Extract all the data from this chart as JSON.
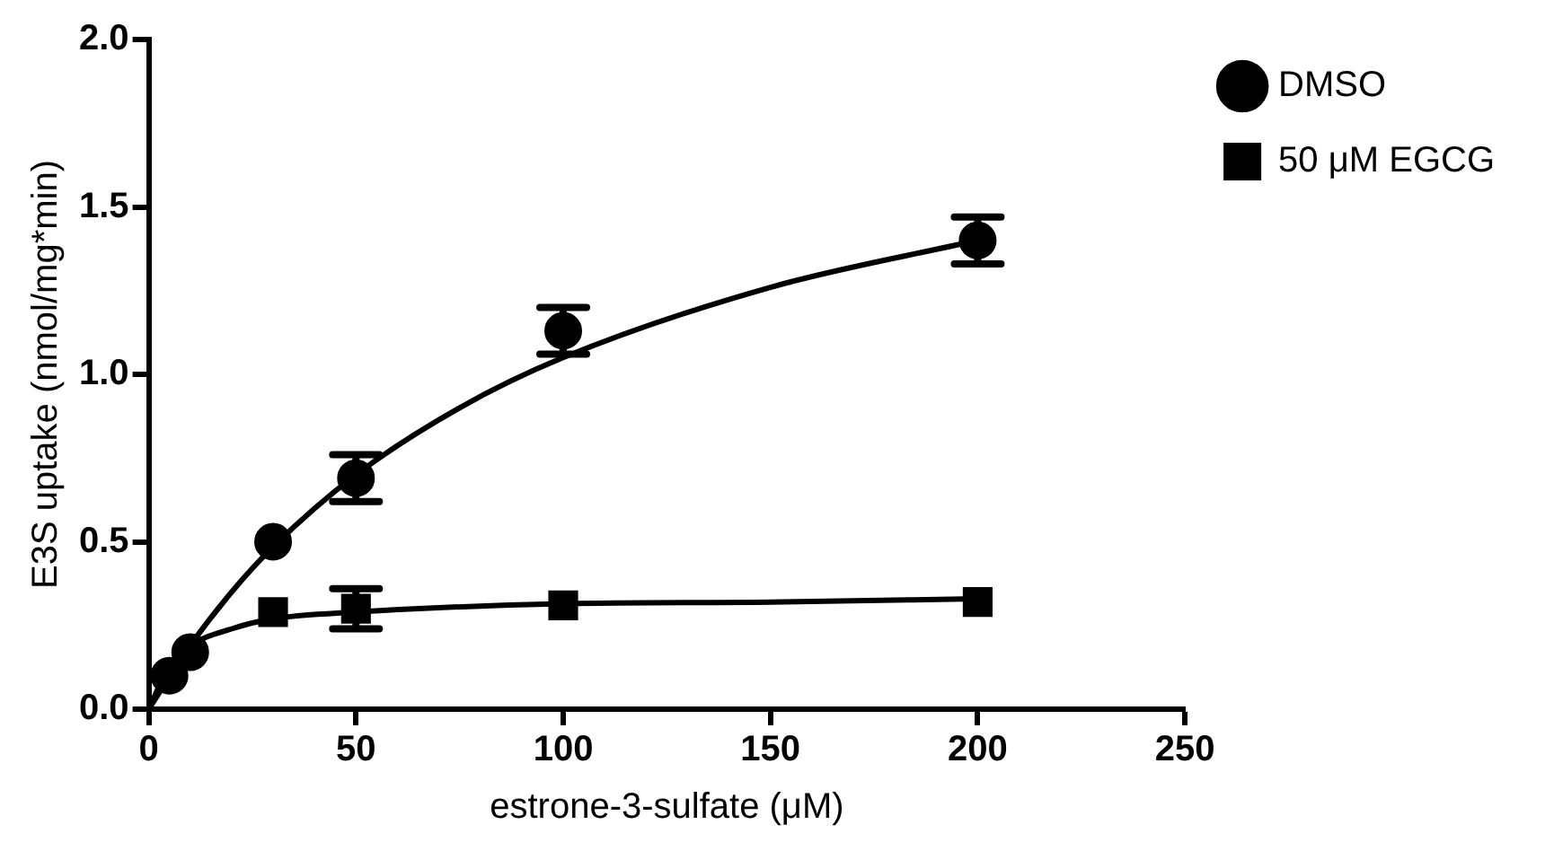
{
  "chart_data": {
    "type": "scatter",
    "xlabel": "estrone-3-sulfate (μM)",
    "ylabel": "E3S uptake (nmol/mg*min)",
    "xlim": [
      0,
      250
    ],
    "xticks": [
      0,
      50,
      100,
      150,
      200,
      250
    ],
    "ylim": [
      0,
      2.0
    ],
    "yticks": [
      {
        "value": 0,
        "label": "0.0"
      },
      {
        "value": 0.5,
        "label": "0.5"
      },
      {
        "value": 1.0,
        "label": "1.0"
      },
      {
        "value": 1.5,
        "label": "1.5"
      },
      {
        "value": 2.0,
        "label": "2.0"
      }
    ],
    "grid": false,
    "legend": "top right",
    "series": [
      {
        "name": "DMSO",
        "marker": "circle",
        "color": "#000000",
        "x": [
          5,
          10,
          30,
          50,
          100,
          200
        ],
        "values": [
          0.1,
          0.17,
          0.5,
          0.69,
          1.13,
          1.4
        ],
        "errors": [
          null,
          null,
          null,
          0.07,
          0.07,
          0.07
        ]
      },
      {
        "name": "50 μM EGCG",
        "marker": "square",
        "color": "#000000",
        "x": [
          30,
          50,
          100,
          200
        ],
        "values": [
          0.29,
          0.3,
          0.31,
          0.32
        ],
        "errors": [
          null,
          0.06,
          null,
          null
        ]
      },
      {
        "type": "line",
        "marker": "none",
        "color": "#000000",
        "x": [
          0,
          10,
          20,
          30,
          50,
          75,
          100,
          150,
          200
        ],
        "values": [
          0,
          0.19,
          0.35,
          0.485,
          0.7,
          0.9,
          1.05,
          1.26,
          1.4
        ]
      },
      {
        "type": "line",
        "marker": "none",
        "color": "#000000",
        "x": [
          0,
          5,
          10,
          20,
          30,
          50,
          100,
          150,
          200
        ],
        "values": [
          0,
          0.13,
          0.19,
          0.24,
          0.27,
          0.29,
          0.315,
          0.32,
          0.33
        ]
      }
    ]
  }
}
